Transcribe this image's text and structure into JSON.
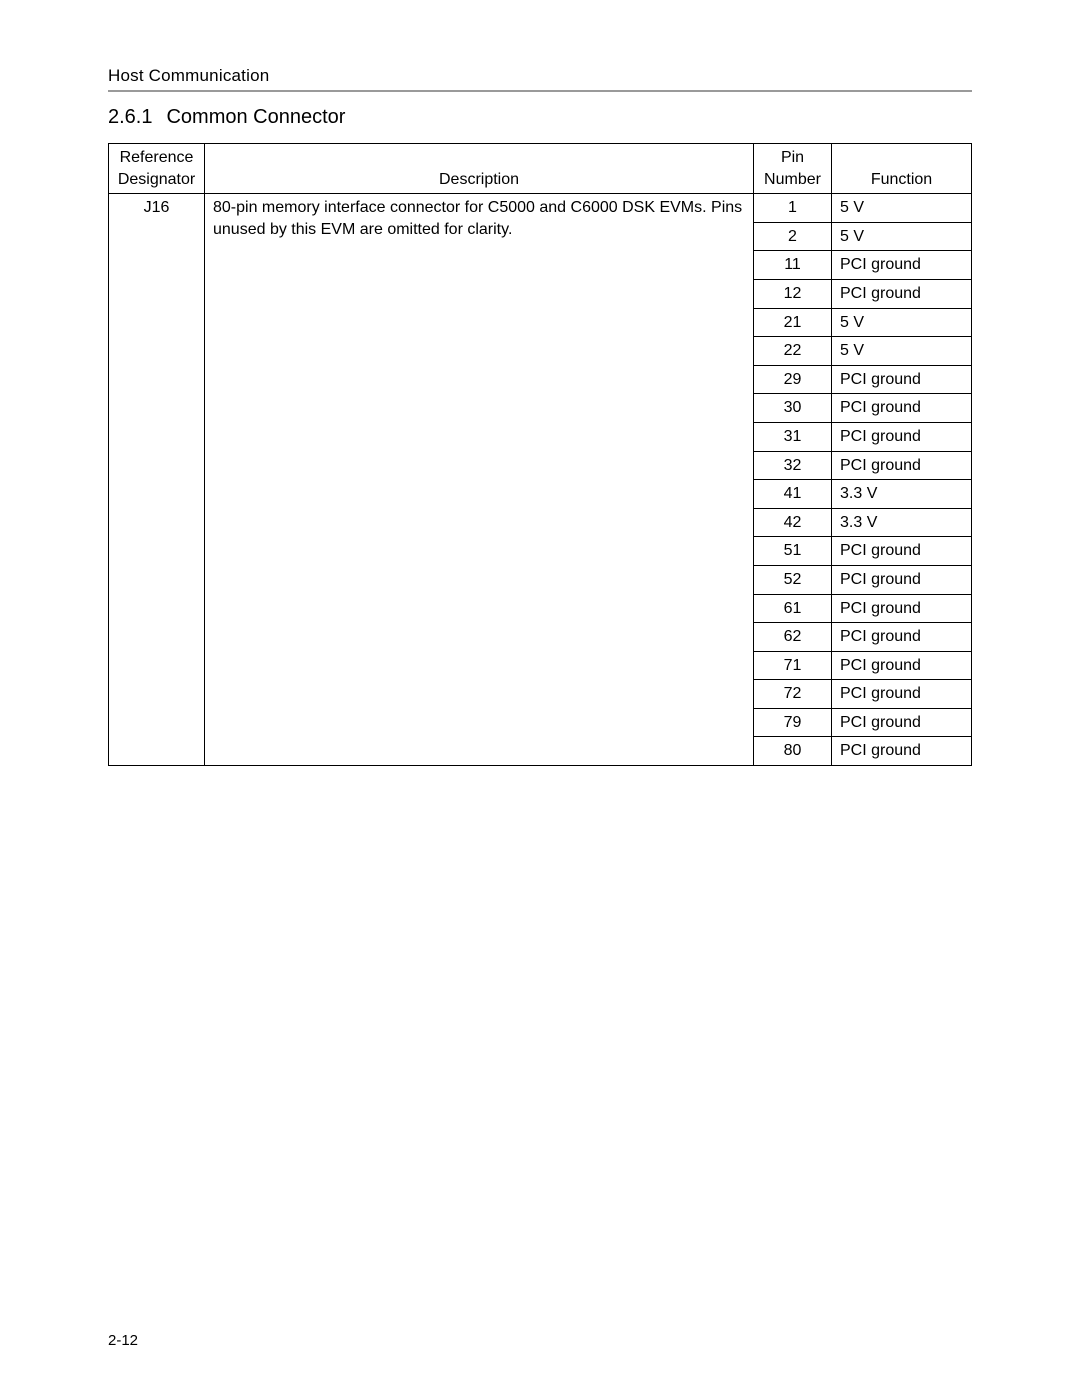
{
  "header": {
    "running_head": "Host Communication"
  },
  "section": {
    "number": "2.6.1",
    "title": "Common Connector"
  },
  "table": {
    "columns": {
      "ref_line1": "Reference",
      "ref_line2": "Designator",
      "desc": "Description",
      "pin_line1": "Pin",
      "pin_line2": "Number",
      "func": "Function"
    },
    "ref_value": "J16",
    "description": "80-pin memory interface connector for  C5000 and  C6000 DSK EVMs. Pins unused by this EVM are omitted for clarity.",
    "rows": [
      {
        "pin": "1",
        "func": "5 V"
      },
      {
        "pin": "2",
        "func": "5 V"
      },
      {
        "pin": "11",
        "func": "PCI ground"
      },
      {
        "pin": "12",
        "func": "PCI ground"
      },
      {
        "pin": "21",
        "func": "5 V"
      },
      {
        "pin": "22",
        "func": "5 V"
      },
      {
        "pin": "29",
        "func": "PCI ground"
      },
      {
        "pin": "30",
        "func": "PCI ground"
      },
      {
        "pin": "31",
        "func": "PCI ground"
      },
      {
        "pin": "32",
        "func": "PCI ground"
      },
      {
        "pin": "41",
        "func": "3.3 V"
      },
      {
        "pin": "42",
        "func": "3.3 V"
      },
      {
        "pin": "51",
        "func": "PCI ground"
      },
      {
        "pin": "52",
        "func": "PCI ground"
      },
      {
        "pin": "61",
        "func": "PCI ground"
      },
      {
        "pin": "62",
        "func": "PCI ground"
      },
      {
        "pin": "71",
        "func": "PCI ground"
      },
      {
        "pin": "72",
        "func": "PCI ground"
      },
      {
        "pin": "79",
        "func": "PCI ground"
      },
      {
        "pin": "80",
        "func": "PCI ground"
      }
    ]
  },
  "footer": {
    "page_number": "2-12"
  }
}
